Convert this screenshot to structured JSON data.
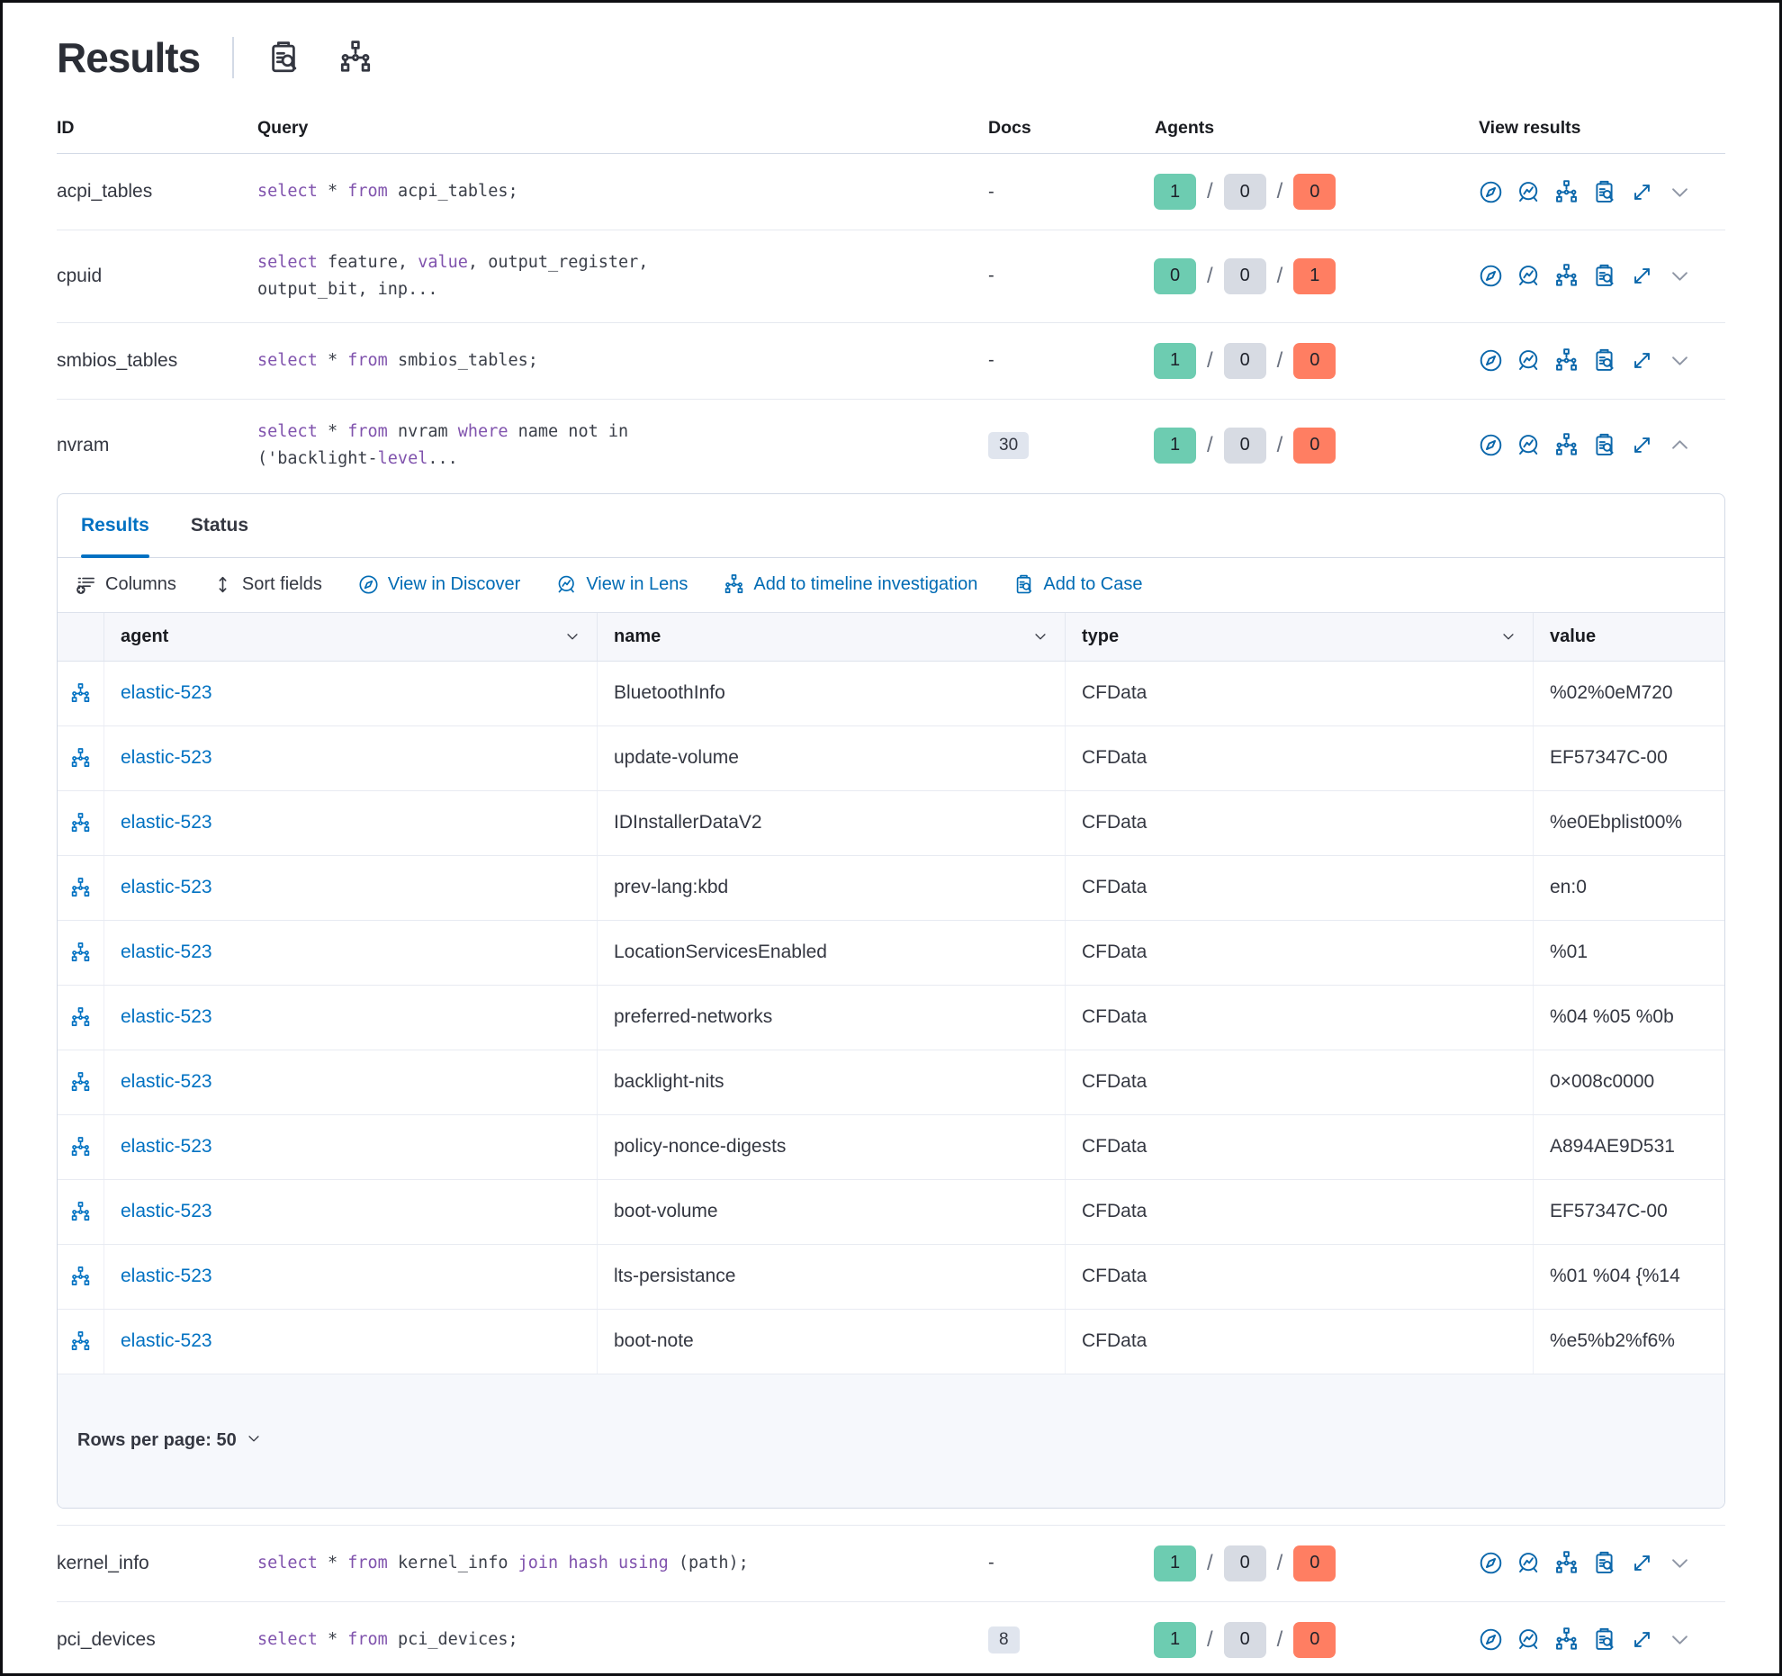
{
  "page": {
    "title": "Results"
  },
  "header_icons": [
    {
      "name": "case-icon",
      "label": "live query details"
    },
    {
      "name": "timeline-icon",
      "label": "add to timeline"
    }
  ],
  "colors": {
    "accent_blue": "#0071c2",
    "link_blue": "#006bb4",
    "success_badge": "#6dccb1",
    "neutral_badge": "#d7dbe3",
    "danger_badge": "#ff7e62",
    "sql_keyword": "#8053ad"
  },
  "queries_table": {
    "columns": [
      "ID",
      "Query",
      "Docs",
      "Agents",
      "View results"
    ],
    "rows": [
      {
        "id": "acpi_tables",
        "query": [
          {
            "t": "select",
            "kw": true
          },
          {
            "t": " * "
          },
          {
            "t": "from",
            "kw": true
          },
          {
            "t": " acpi_tables;"
          }
        ],
        "docs": "-",
        "docs_badge": false,
        "agents": {
          "success": 1,
          "pending": 0,
          "failed": 0
        },
        "expanded": false
      },
      {
        "id": "cpuid",
        "query": [
          {
            "t": "select",
            "kw": true
          },
          {
            "t": " feature, "
          },
          {
            "t": "value",
            "kw": true
          },
          {
            "t": ", output_register,"
          },
          {
            "br": true
          },
          {
            "t": "output_bit, inp..."
          }
        ],
        "docs": "-",
        "docs_badge": false,
        "agents": {
          "success": 0,
          "pending": 0,
          "failed": 1
        },
        "expanded": false
      },
      {
        "id": "smbios_tables",
        "query": [
          {
            "t": "select",
            "kw": true
          },
          {
            "t": " * "
          },
          {
            "t": "from",
            "kw": true
          },
          {
            "t": " smbios_tables;"
          }
        ],
        "docs": "-",
        "docs_badge": false,
        "agents": {
          "success": 1,
          "pending": 0,
          "failed": 0
        },
        "expanded": false
      },
      {
        "id": "nvram",
        "query": [
          {
            "t": "select",
            "kw": true
          },
          {
            "t": " * "
          },
          {
            "t": "from",
            "kw": true
          },
          {
            "t": " nvram "
          },
          {
            "t": "where",
            "kw": true
          },
          {
            "t": " name not in"
          },
          {
            "br": true
          },
          {
            "t": "('backlight-"
          },
          {
            "t": "level",
            "kw": true
          },
          {
            "t": "..."
          }
        ],
        "docs": "30",
        "docs_badge": true,
        "agents": {
          "success": 1,
          "pending": 0,
          "failed": 0
        },
        "expanded": true
      },
      {
        "id": "kernel_info",
        "query": [
          {
            "t": "select",
            "kw": true
          },
          {
            "t": " * "
          },
          {
            "t": "from",
            "kw": true
          },
          {
            "t": " kernel_info "
          },
          {
            "t": "join",
            "kw": true
          },
          {
            "t": " "
          },
          {
            "t": "hash",
            "kw": true
          },
          {
            "t": " "
          },
          {
            "t": "using",
            "kw": true
          },
          {
            "t": " (path);"
          }
        ],
        "docs": "-",
        "docs_badge": false,
        "agents": {
          "success": 1,
          "pending": 0,
          "failed": 0
        },
        "expanded": false
      },
      {
        "id": "pci_devices",
        "query": [
          {
            "t": "select",
            "kw": true
          },
          {
            "t": " * "
          },
          {
            "t": "from",
            "kw": true
          },
          {
            "t": " pci_devices;"
          }
        ],
        "docs": "8",
        "docs_badge": true,
        "agents": {
          "success": 1,
          "pending": 0,
          "failed": 0
        },
        "expanded": false
      }
    ],
    "row_action_icons": [
      {
        "name": "discover-icon",
        "label": "View in Discover"
      },
      {
        "name": "lens-icon",
        "label": "View in Lens"
      },
      {
        "name": "timeline-icon",
        "label": "Add to timeline investigation"
      },
      {
        "name": "case-icon",
        "label": "Add to Case"
      },
      {
        "name": "expand-icon",
        "label": "Open results in full screen"
      }
    ]
  },
  "results_panel": {
    "tabs": [
      {
        "label": "Results",
        "active": true
      },
      {
        "label": "Status",
        "active": false
      }
    ],
    "toolbar": [
      {
        "label": "Columns",
        "icon": "columns-icon",
        "style": "dark"
      },
      {
        "label": "Sort fields",
        "icon": "sort-fields-icon",
        "style": "dark"
      },
      {
        "label": "View in Discover",
        "icon": "discover-icon",
        "style": "link"
      },
      {
        "label": "View in Lens",
        "icon": "lens-icon",
        "style": "link"
      },
      {
        "label": "Add to timeline investigation",
        "icon": "timeline-icon",
        "style": "link"
      },
      {
        "label": "Add to Case",
        "icon": "case-icon",
        "style": "link"
      }
    ],
    "grid": {
      "columns": [
        {
          "label": "agent",
          "sortable": true
        },
        {
          "label": "name",
          "sortable": true
        },
        {
          "label": "type",
          "sortable": true
        },
        {
          "label": "value",
          "sortable": false
        }
      ],
      "rows": [
        {
          "agent": "elastic-523",
          "name": "BluetoothInfo",
          "type": "CFData",
          "value": "%02%0eM720"
        },
        {
          "agent": "elastic-523",
          "name": "update-volume",
          "type": "CFData",
          "value": "EF57347C-00"
        },
        {
          "agent": "elastic-523",
          "name": "IDInstallerDataV2",
          "type": "CFData",
          "value": "%e0Ebplist00%"
        },
        {
          "agent": "elastic-523",
          "name": "prev-lang:kbd",
          "type": "CFData",
          "value": "en:0"
        },
        {
          "agent": "elastic-523",
          "name": "LocationServicesEnabled",
          "type": "CFData",
          "value": "%01"
        },
        {
          "agent": "elastic-523",
          "name": "preferred-networks",
          "type": "CFData",
          "value": "%04 %05 %0b"
        },
        {
          "agent": "elastic-523",
          "name": "backlight-nits",
          "type": "CFData",
          "value": "0×008c0000"
        },
        {
          "agent": "elastic-523",
          "name": "policy-nonce-digests",
          "type": "CFData",
          "value": "A894AE9D531"
        },
        {
          "agent": "elastic-523",
          "name": "boot-volume",
          "type": "CFData",
          "value": "EF57347C-00"
        },
        {
          "agent": "elastic-523",
          "name": "lts-persistance",
          "type": "CFData",
          "value": "%01 %04 {%14"
        },
        {
          "agent": "elastic-523",
          "name": "boot-note",
          "type": "CFData",
          "value": "%e5%b2%f6%"
        }
      ]
    },
    "footer": {
      "label": "Rows per page: 50"
    }
  }
}
